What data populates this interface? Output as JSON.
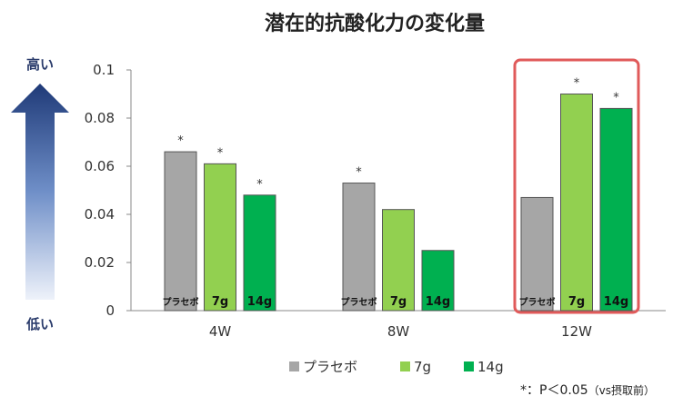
{
  "chart_data": {
    "type": "bar",
    "title": "潜在的抗酸化力の変化量",
    "categories": [
      "4W",
      "8W",
      "12W"
    ],
    "ylim": [
      0,
      0.1
    ],
    "yticks": [
      "0",
      "0.02",
      "0.04",
      "0.06",
      "0.08",
      "0.1"
    ],
    "grid": false,
    "legend_position": "bottom",
    "series": [
      {
        "name": "プラセボ",
        "color": "#a6a6a6",
        "values": [
          0.066,
          0.053,
          0.047
        ],
        "star": [
          true,
          true,
          false
        ]
      },
      {
        "name": "7g",
        "color": "#92d050",
        "values": [
          0.061,
          0.042,
          0.09
        ],
        "star": [
          true,
          false,
          true
        ]
      },
      {
        "name": "14g",
        "color": "#00b050",
        "values": [
          0.048,
          0.025,
          0.084
        ],
        "star": [
          true,
          false,
          true
        ]
      }
    ],
    "star_symbol": "*",
    "highlight": {
      "category": "12W",
      "color": "#e05a5a"
    }
  },
  "side_arrow": {
    "top_label": "高い",
    "bottom_label": "低い"
  },
  "footnote": {
    "main": "*：P＜0.05",
    "sub": "（vs摂取前）"
  }
}
